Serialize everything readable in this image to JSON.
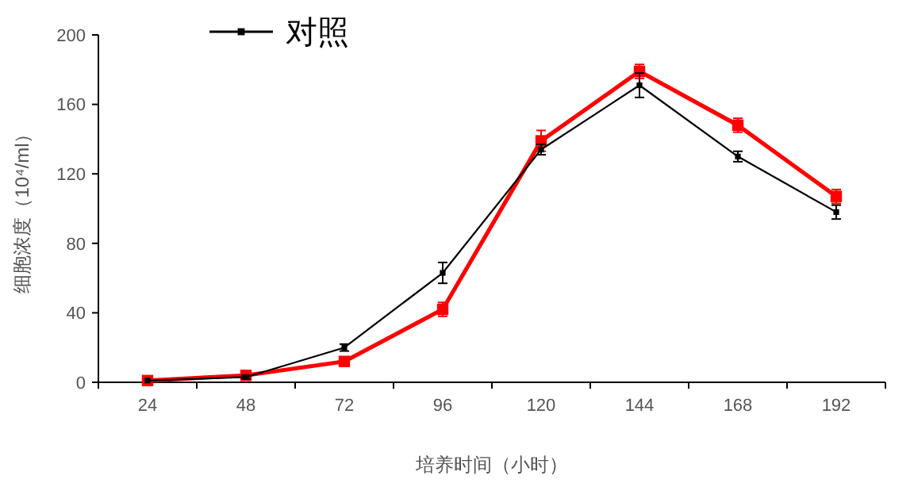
{
  "chart_data": {
    "type": "line",
    "xlabel": "培养时间（小时）",
    "ylabel": "细胞浓度（10⁴/ml）",
    "categories": [
      "24",
      "48",
      "72",
      "96",
      "120",
      "144",
      "168",
      "192"
    ],
    "ylim": [
      0,
      200
    ],
    "yticks": [
      0,
      40,
      80,
      120,
      160,
      200
    ],
    "legend": "top left",
    "marker": "square",
    "line_style": "solid",
    "grid": false,
    "series": [
      {
        "color": "#ff0000",
        "values": [
          1,
          4,
          12,
          42,
          139,
          179,
          148,
          107
        ],
        "errors": [
          null,
          1,
          1,
          4,
          6,
          4,
          4,
          4
        ]
      },
      {
        "name": "对照",
        "color": "#000000",
        "values": [
          1,
          3,
          20,
          63,
          134,
          171,
          130,
          98
        ],
        "errors": [
          null,
          1,
          2,
          6,
          3,
          7,
          3,
          4
        ]
      }
    ]
  }
}
